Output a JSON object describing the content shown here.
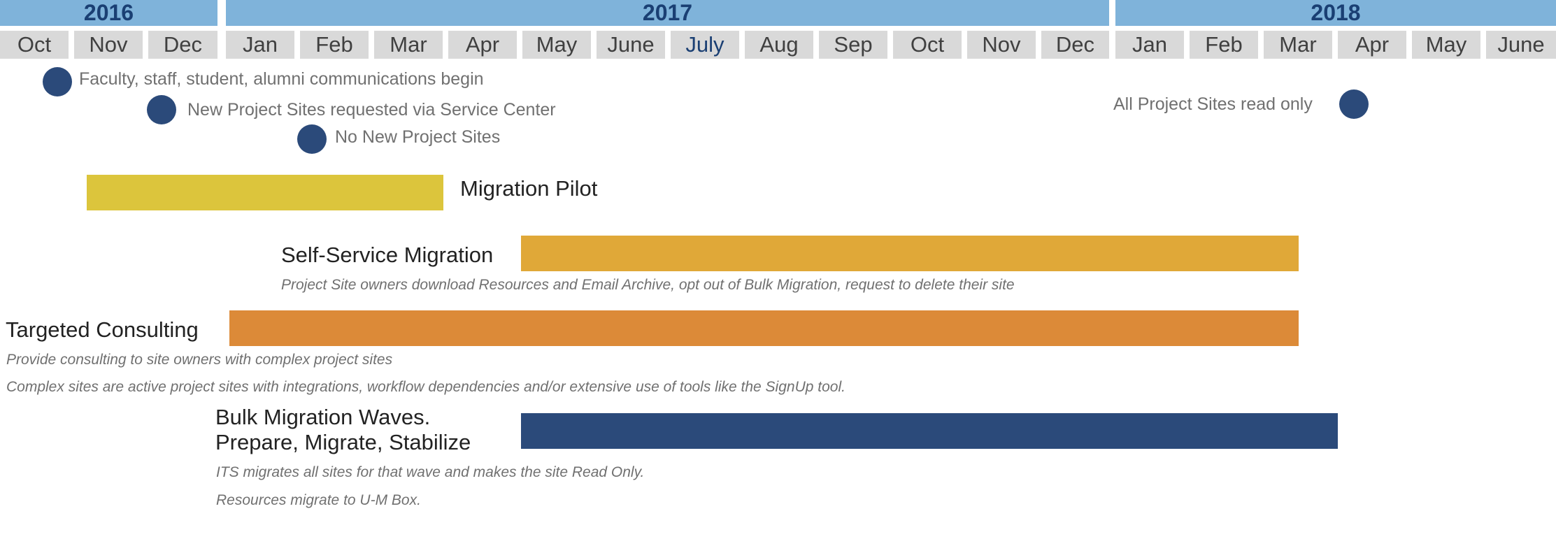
{
  "years": [
    {
      "label": "2016"
    },
    {
      "label": "2017"
    },
    {
      "label": "2018"
    }
  ],
  "months": [
    "Oct",
    "Nov",
    "Dec",
    "Jan",
    "Feb",
    "Mar",
    "Apr",
    "May",
    "June",
    "July",
    "Aug",
    "Sep",
    "Oct",
    "Nov",
    "Dec",
    "Jan",
    "Feb",
    "Mar",
    "Apr",
    "May",
    "June"
  ],
  "highlighted_month": "July",
  "colors": {
    "year_bg": "#7fb3da",
    "year_text": "#1a3f73",
    "month_bg": "#d9d9d9",
    "milestone": "#2b4a7a",
    "pilot": "#dcc53c",
    "self_service": "#e0a838",
    "consulting": "#dc8a38",
    "bulk": "#2b4a7a"
  },
  "milestones": [
    {
      "text": "Faculty, staff, student, alumni communications begin"
    },
    {
      "text": "New Project Sites requested via Service Center"
    },
    {
      "text": "No New Project Sites"
    },
    {
      "text": "All Project Sites read only"
    }
  ],
  "tracks": {
    "pilot": {
      "label": "Migration Pilot"
    },
    "self_service": {
      "label": "Self-Service Migration",
      "note": "Project Site owners download Resources and Email Archive, opt out of Bulk Migration, request to delete their site"
    },
    "consulting": {
      "label": "Targeted Consulting",
      "note1": "Provide consulting to site owners with complex project sites",
      "note2": "Complex sites are active project sites with integrations, workflow dependencies and/or extensive use of tools like the SignUp tool."
    },
    "bulk": {
      "label_line1": "Bulk Migration Waves.",
      "label_line2": "Prepare, Migrate, Stabilize",
      "note1": "ITS migrates all sites for that wave and makes the site Read Only.",
      "note2": "Resources migrate to U-M Box."
    }
  }
}
